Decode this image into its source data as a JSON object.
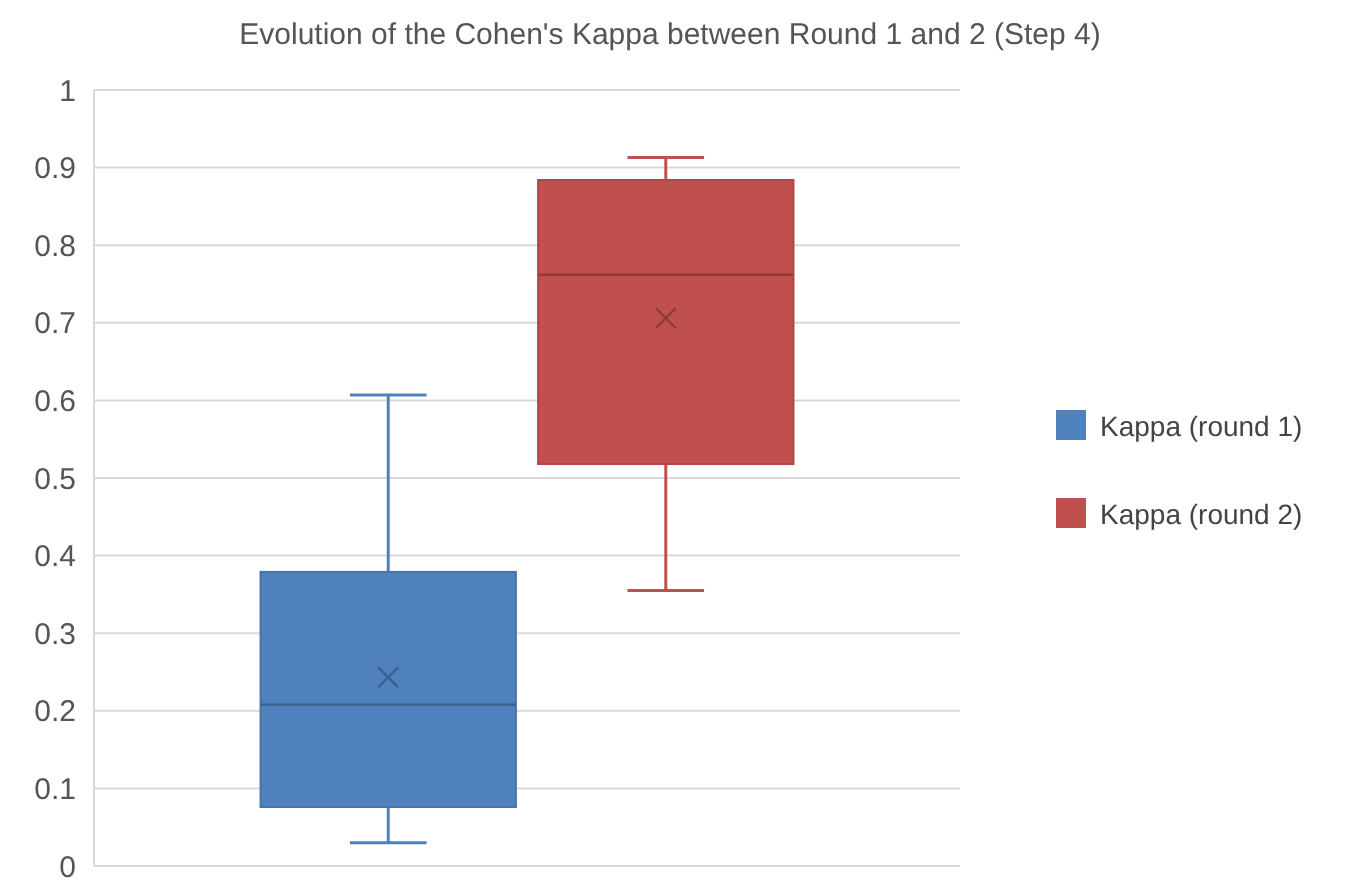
{
  "chart_data": {
    "type": "box",
    "title": "Evolution of the Cohen's Kappa between Round 1 and 2 (Step 4)",
    "categories": [
      null
    ],
    "series": [
      {
        "name": "Kappa (round 1)",
        "color": "#4f81bd",
        "boxes": [
          {
            "low": 0.03,
            "q1": 0.076,
            "median": 0.208,
            "q3": 0.379,
            "high": 0.607,
            "mean": 0.243
          }
        ]
      },
      {
        "name": "Kappa (round 2)",
        "color": "#c0504d",
        "boxes": [
          {
            "low": 0.355,
            "q1": 0.518,
            "median": 0.762,
            "q3": 0.884,
            "high": 0.913,
            "mean": 0.706
          }
        ]
      }
    ],
    "ylim": [
      0,
      1
    ],
    "yticks": [
      0,
      0.1,
      0.2,
      0.3,
      0.4,
      0.5,
      0.6,
      0.7,
      0.8,
      0.9,
      1
    ],
    "grid": "y",
    "legend": "right"
  }
}
